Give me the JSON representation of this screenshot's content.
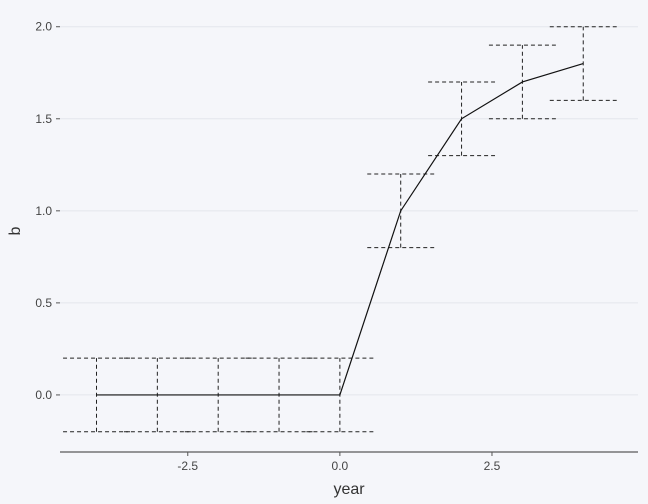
{
  "chart_data": {
    "type": "line",
    "xlabel": "year",
    "ylabel": "b",
    "xlim": [
      -4.6,
      4.9
    ],
    "ylim": [
      -0.31,
      2.08
    ],
    "x_ticks": [
      -2.5,
      0.0,
      2.5
    ],
    "x_tick_labels": [
      "-2.5",
      "0.0",
      "2.5"
    ],
    "y_ticks": [
      0.0,
      0.5,
      1.0,
      1.5,
      2.0
    ],
    "y_tick_labels": [
      "0.0",
      "0.5",
      "1.0",
      "1.5",
      "2.0"
    ],
    "grid": "horizontal",
    "error_bar_width": 1.1,
    "colors": {
      "line": "#111111",
      "errorbar": "#222222",
      "background": "#f5f6fa"
    },
    "series": [
      {
        "x": [
          -4,
          -3,
          -2,
          -1,
          0,
          1,
          2,
          3,
          4
        ],
        "y": [
          0,
          0,
          0,
          0,
          0,
          1.0,
          1.5,
          1.7,
          1.8
        ],
        "ymin": [
          -0.2,
          -0.2,
          -0.2,
          -0.2,
          -0.2,
          0.8,
          1.3,
          1.5,
          1.6
        ],
        "ymax": [
          0.2,
          0.2,
          0.2,
          0.2,
          0.2,
          1.2,
          1.7,
          1.9,
          2.0
        ]
      }
    ]
  }
}
